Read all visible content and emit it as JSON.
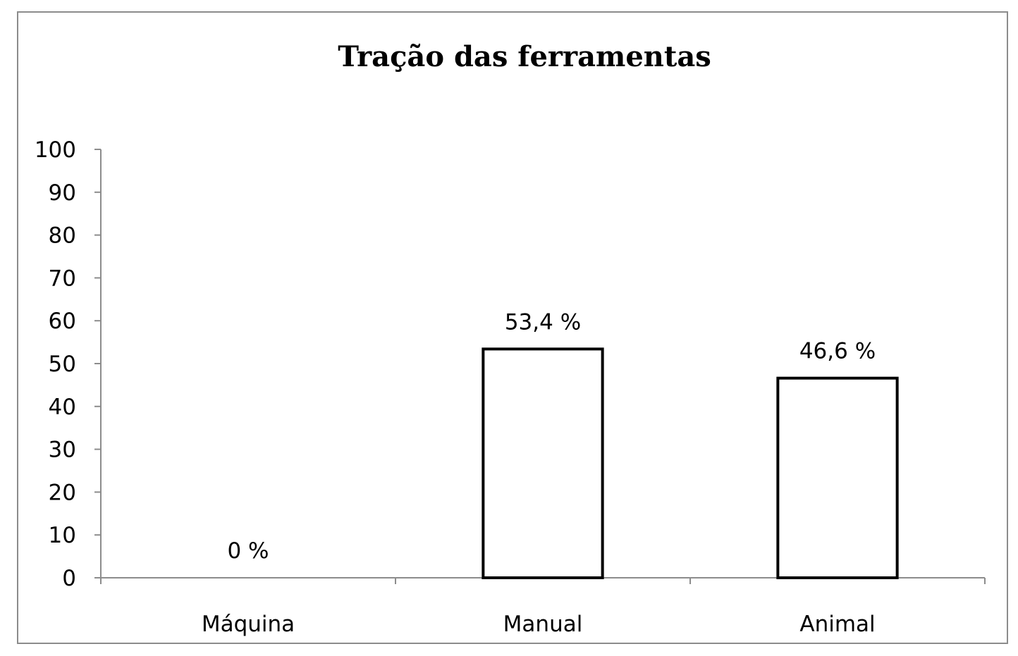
{
  "chart_data": {
    "type": "bar",
    "title": "Tração das ferramentas",
    "categories": [
      "Máquina",
      "Manual",
      "Animal"
    ],
    "values": [
      0,
      53.4,
      46.6
    ],
    "data_labels": [
      "0 %",
      "53,4 %",
      "46,6 %"
    ],
    "xlabel": "",
    "ylabel": "",
    "ylim": [
      0,
      100
    ],
    "yticks": [
      "0",
      "10",
      "20",
      "30",
      "40",
      "50",
      "60",
      "70",
      "80",
      "90",
      "100"
    ],
    "grid": false,
    "legend": "none",
    "bar_fill": "#ffffff",
    "bar_stroke": "#000000"
  }
}
